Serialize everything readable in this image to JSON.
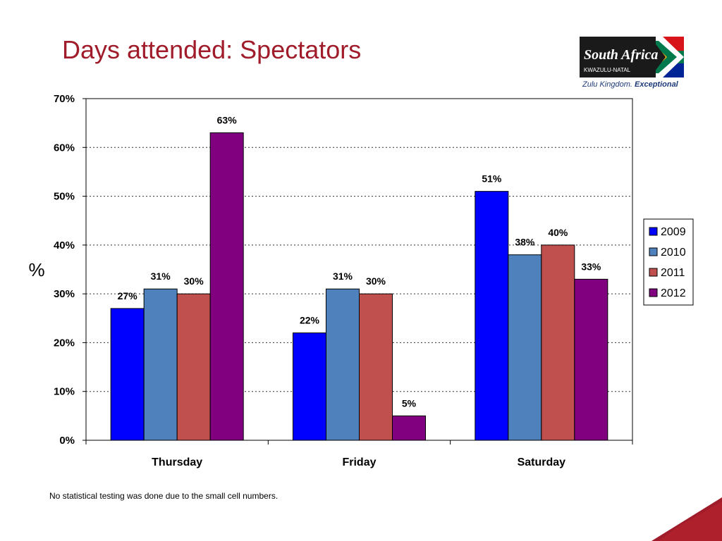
{
  "slide": {
    "title": "Days attended: Spectators",
    "footnote": "No statistical testing was done due to the small cell numbers."
  },
  "logo": {
    "name_line1": "South Africa",
    "name_line2": "KWAZULU-NATAL",
    "tagline_start": "Zulu Kingdom.",
    "tagline_end": "Exceptional"
  },
  "colors": {
    "title": "#a01c2a",
    "accent": "#a01c2a"
  },
  "chart_data": {
    "type": "bar",
    "title": "",
    "xlabel": "",
    "ylabel": "%",
    "categories": [
      "Thursday",
      "Friday",
      "Saturday"
    ],
    "series": [
      {
        "name": "2009",
        "color": "#0000ff",
        "values": [
          27,
          22,
          51
        ],
        "labels": [
          "27%",
          "22%",
          "51%"
        ]
      },
      {
        "name": "2010",
        "color": "#4f81bd",
        "values": [
          31,
          31,
          38
        ],
        "labels": [
          "31%",
          "31%",
          "38%"
        ]
      },
      {
        "name": "2011",
        "color": "#c0504d",
        "values": [
          30,
          30,
          40
        ],
        "labels": [
          "30%",
          "30%",
          "40%"
        ]
      },
      {
        "name": "2012",
        "color": "#800080",
        "values": [
          63,
          5,
          33
        ],
        "labels": [
          "63%",
          "5%",
          "33%"
        ]
      }
    ],
    "ylim": [
      0,
      70
    ],
    "yticks": [
      0,
      10,
      20,
      30,
      40,
      50,
      60,
      70
    ],
    "ytick_labels": [
      "0%",
      "10%",
      "20%",
      "30%",
      "40%",
      "50%",
      "60%",
      "70%"
    ],
    "grid": "dotted horizontal",
    "legend_position": "right"
  }
}
